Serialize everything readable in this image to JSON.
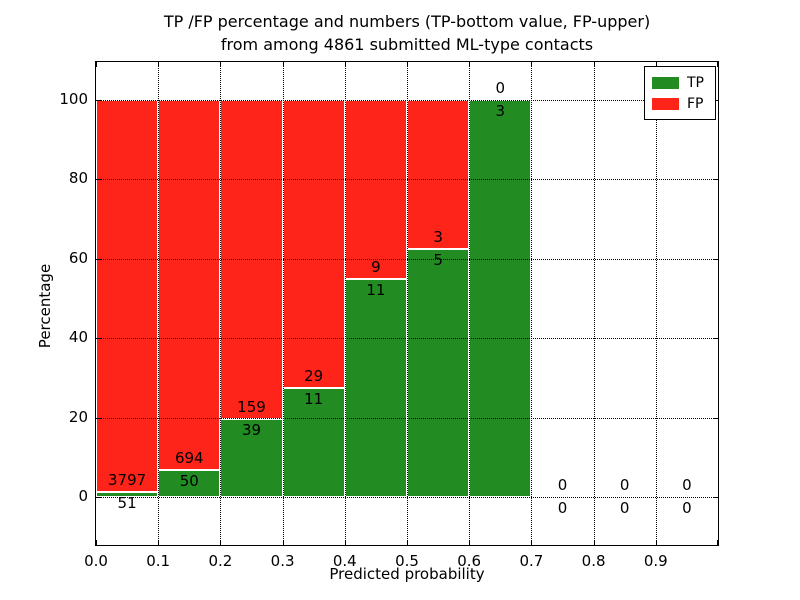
{
  "chart_data": {
    "type": "bar",
    "stacked": true,
    "unit": "percent",
    "title_line1": "TP /FP percentage and numbers (TP-bottom value, FP-upper)",
    "title_line2": "from among 4861 submitted ML-type contacts",
    "total_contacts": 4861,
    "xlabel": "Predicted probability",
    "ylabel": "Percentage",
    "x_tick_labels": [
      "0.0",
      "0.1",
      "0.2",
      "0.3",
      "0.4",
      "0.5",
      "0.6",
      "0.7",
      "0.8",
      "0.9"
    ],
    "y_ticks": [
      0,
      20,
      40,
      60,
      80,
      100
    ],
    "xlim": [
      0.0,
      1.0
    ],
    "ylim": [
      -12.1,
      109.6
    ],
    "grid": "dotted",
    "legend_position": "upper right",
    "legend": [
      {
        "label": "TP",
        "color": "#228b22"
      },
      {
        "label": "FP",
        "color": "#ff2419"
      }
    ],
    "bins": [
      {
        "x0": 0.0,
        "x1": 0.1,
        "tp": 51,
        "fp": 3797
      },
      {
        "x0": 0.1,
        "x1": 0.2,
        "tp": 50,
        "fp": 694
      },
      {
        "x0": 0.2,
        "x1": 0.3,
        "tp": 39,
        "fp": 159
      },
      {
        "x0": 0.3,
        "x1": 0.4,
        "tp": 11,
        "fp": 29
      },
      {
        "x0": 0.4,
        "x1": 0.5,
        "tp": 11,
        "fp": 9
      },
      {
        "x0": 0.5,
        "x1": 0.6,
        "tp": 5,
        "fp": 3
      },
      {
        "x0": 0.6,
        "x1": 0.7,
        "tp": 3,
        "fp": 0
      },
      {
        "x0": 0.7,
        "x1": 0.8,
        "tp": 0,
        "fp": 0
      },
      {
        "x0": 0.8,
        "x1": 0.9,
        "tp": 0,
        "fp": 0
      },
      {
        "x0": 0.9,
        "x1": 1.0,
        "tp": 0,
        "fp": 0
      }
    ]
  }
}
